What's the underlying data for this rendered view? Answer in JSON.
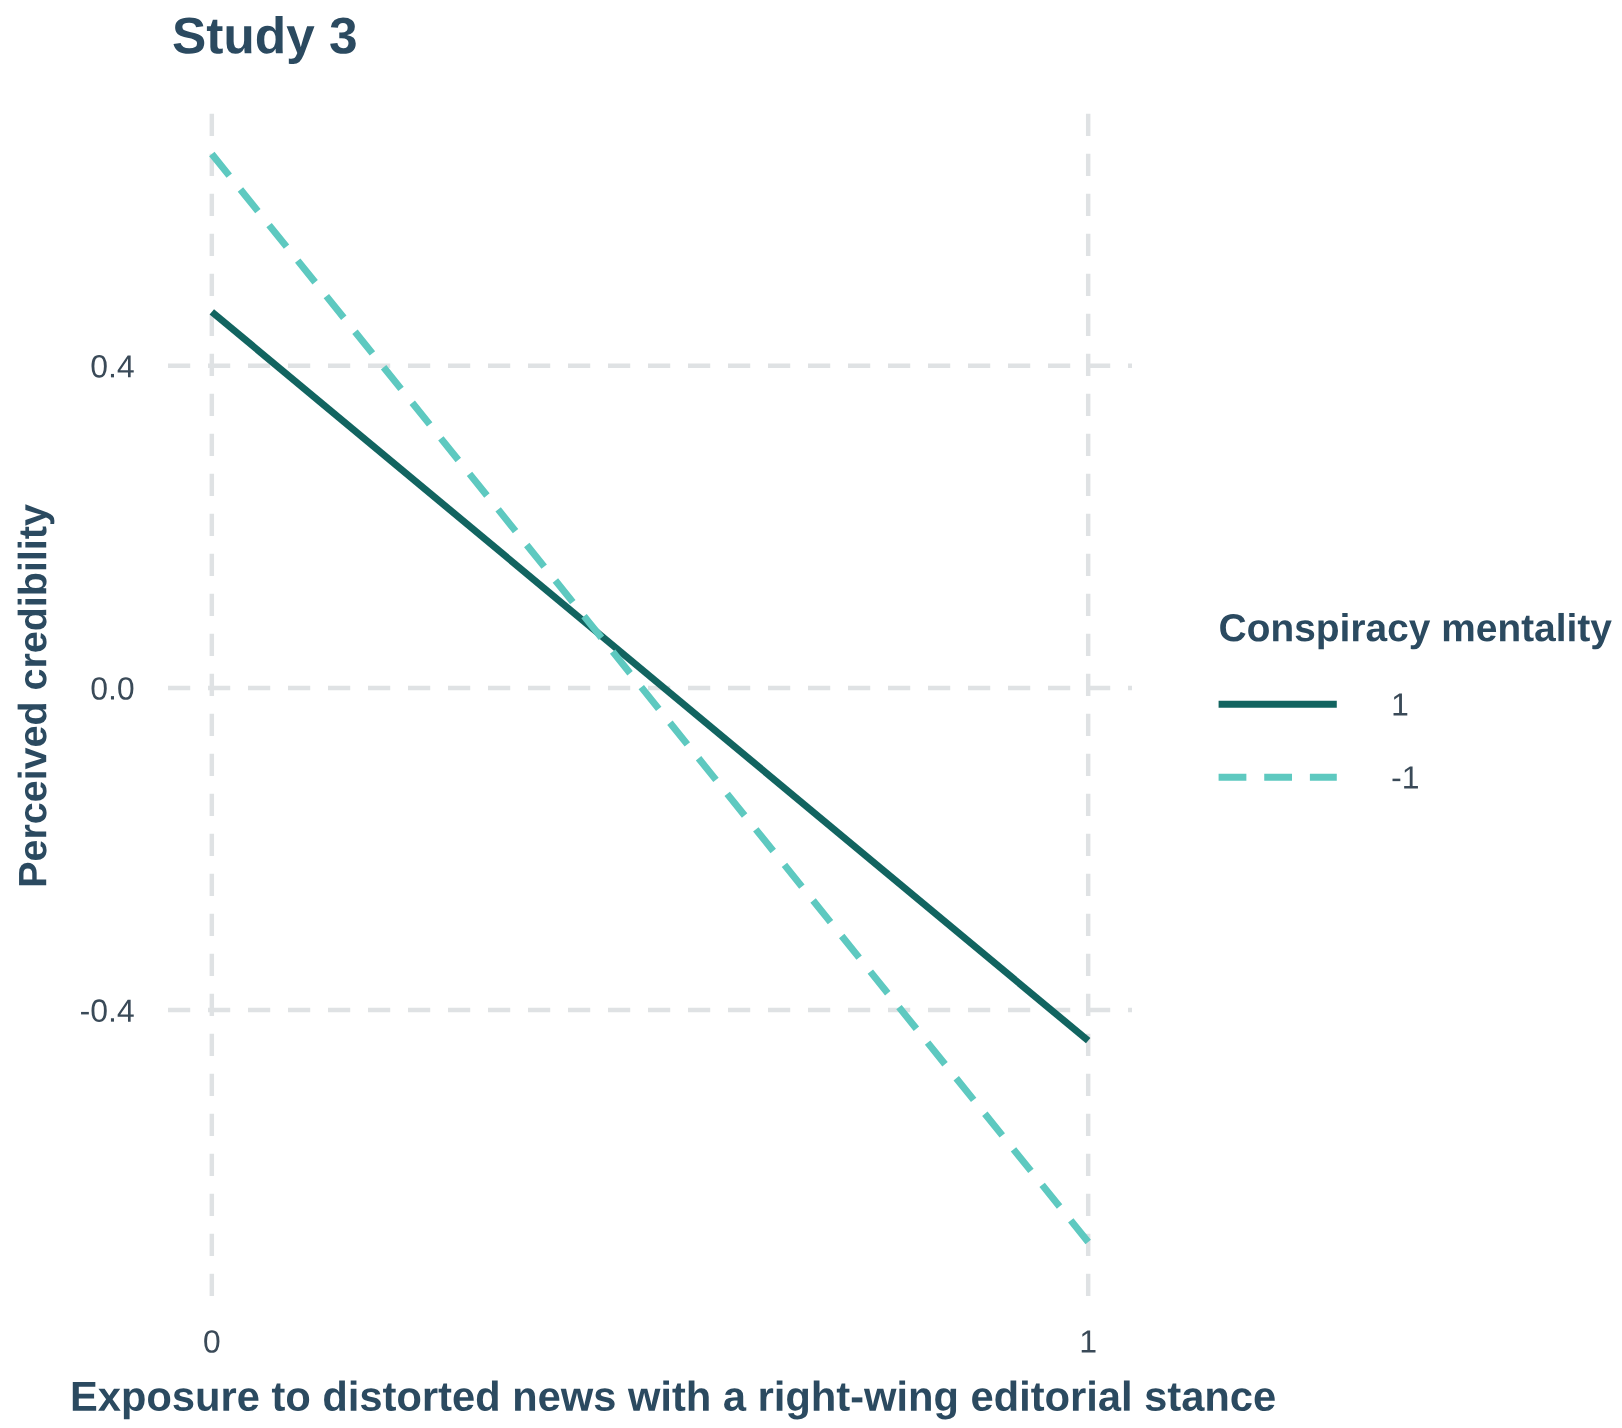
{
  "chart_data": {
    "type": "line",
    "title": "Study 3",
    "xlabel": "Exposure to distorted news with a right-wing editorial stance",
    "ylabel": "Perceived credibility",
    "legend_title": "Conspiracy mentality",
    "x": [
      0,
      1
    ],
    "series": [
      {
        "name": "1",
        "color": "#126460",
        "values": [
          0.467,
          -0.438
        ],
        "line_style": "solid"
      },
      {
        "name": "-1",
        "color": "#5ec9c0",
        "values": [
          0.663,
          -0.688
        ],
        "line_style": "dashed"
      }
    ],
    "xlim": [
      -0.05,
      1.05
    ],
    "ylim": [
      -0.755,
      0.73
    ],
    "xticks": [
      0,
      1
    ],
    "yticks": [
      {
        "value": 0.4,
        "label": "0.4"
      },
      {
        "value": 0.0,
        "label": "0.0"
      },
      {
        "value": -0.4,
        "label": "-0.4"
      }
    ],
    "grid": true,
    "legend": "right",
    "marker": "none"
  }
}
